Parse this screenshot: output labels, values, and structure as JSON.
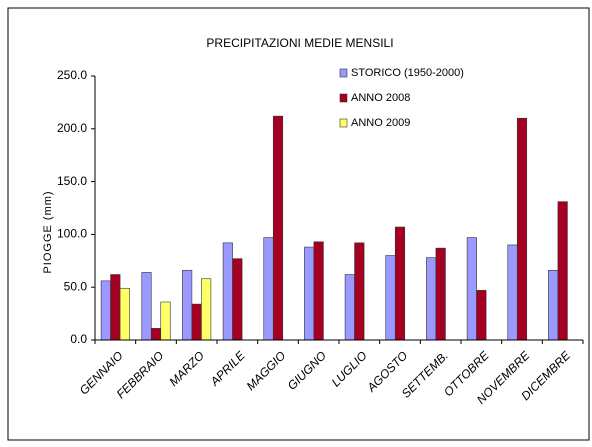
{
  "chart_data": {
    "type": "bar",
    "title": "PRECIPITAZIONI MEDIE MENSILI",
    "y_label": "PIOGGE (mm)",
    "categories": [
      "GENNAIO",
      "FEBBRAIO",
      "MARZO",
      "APRILE",
      "MAGGIO",
      "GIUGNO",
      "LUGLIO",
      "AGOSTO",
      "SETTEMB.",
      "OTTOBRE",
      "NOVEMBRE",
      "DICEMBRE"
    ],
    "series": [
      {
        "name": "STORICO (1950-2000)",
        "color": "#9999ff",
        "values": [
          56,
          64,
          66,
          92,
          97,
          88,
          62,
          80,
          78,
          97,
          90,
          66
        ]
      },
      {
        "name": "ANNO 2008",
        "color": "#a50021",
        "values": [
          62,
          11,
          34,
          77,
          212,
          93,
          92,
          107,
          87,
          47,
          210,
          131
        ]
      },
      {
        "name": "ANNO 2009",
        "color": "#ffff66",
        "values": [
          49,
          36,
          58,
          null,
          null,
          null,
          null,
          null,
          null,
          null,
          null,
          null
        ]
      }
    ],
    "ylim": [
      0,
      250
    ],
    "yticks": [
      {
        "value": 0,
        "label": "0.0"
      },
      {
        "value": 50,
        "label": "50.0"
      },
      {
        "value": 100,
        "label": "100.0"
      },
      {
        "value": 150,
        "label": "150.0"
      },
      {
        "value": 200,
        "label": "200.0"
      },
      {
        "value": 250,
        "label": "250.0"
      }
    ],
    "grid": false,
    "legend": "top-right"
  }
}
